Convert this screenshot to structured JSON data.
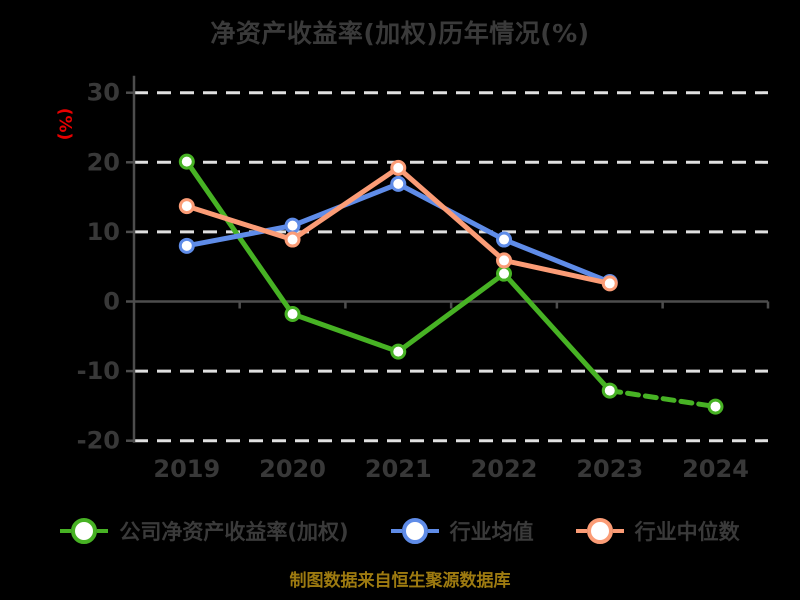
{
  "title": "净资产收益率(加权)历年情况(%)",
  "source_note": "制图数据来自恒生聚源数据库",
  "colors": {
    "background": "#000000",
    "title_text": "#3a3a3a",
    "axis_line": "#4d4d4d",
    "tick_label_text": "#383838",
    "gridline": "#e0e0e0",
    "ylabel_red": "#e60000",
    "source_note_gold": "#9d7a10",
    "company_green": "#47b224",
    "industry_avg_blue": "#5f8ce8",
    "industry_median_orange": "#fb9c76"
  },
  "chart_data": {
    "type": "line",
    "title": "净资产收益率(加权)历年情况(%)",
    "ylabel": "(%)",
    "xlabel": "",
    "categories": [
      "2019",
      "2020",
      "2021",
      "2022",
      "2023",
      "2024"
    ],
    "yticks": [
      30,
      20,
      10,
      0,
      -10,
      -20
    ],
    "ylim": [
      -20,
      30
    ],
    "grid": "horizontal dashed gridlines, solid zero axis line",
    "legend_position": "bottom",
    "marker_style": "white-filled circles with colored ring",
    "series": [
      {
        "name": "公司净资产收益率(加权)",
        "color": "#47b224",
        "values": [
          20.1,
          -1.8,
          -7.2,
          4.0,
          -12.8,
          -15.1
        ],
        "last_segment_dashed": true
      },
      {
        "name": "行业均值",
        "color": "#5f8ce8",
        "values": [
          8.0,
          10.9,
          16.9,
          8.9,
          2.8,
          null
        ],
        "last_segment_dashed": false
      },
      {
        "name": "行业中位数",
        "color": "#fb9c76",
        "values": [
          13.7,
          8.9,
          19.2,
          5.9,
          2.6,
          null
        ],
        "last_segment_dashed": false
      }
    ]
  }
}
